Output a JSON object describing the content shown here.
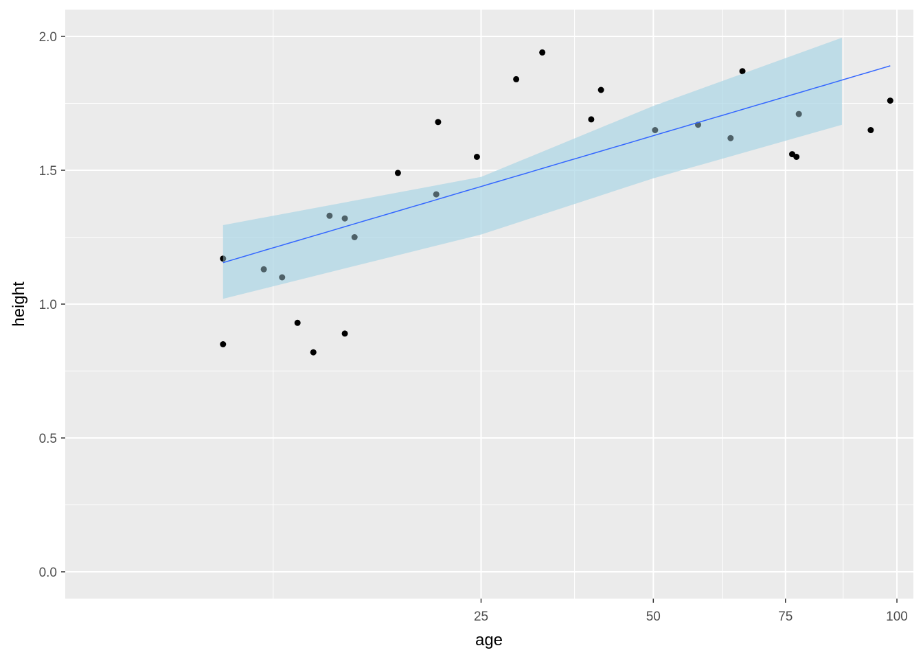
{
  "chart_data": {
    "type": "scatter",
    "title": "",
    "xlabel": "age",
    "ylabel": "height",
    "x_scale": "sqrt",
    "xlim": [
      0,
      104
    ],
    "ylim": [
      -0.1,
      2.1
    ],
    "x_major_ticks": [
      25,
      50,
      75,
      100
    ],
    "x_minor_ticks": [
      6.25,
      37.5,
      62.5,
      87.5
    ],
    "y_ticks": [
      0.0,
      0.5,
      1.0,
      1.5,
      2.0
    ],
    "y_tick_labels": [
      "0.0",
      "0.5",
      "1.0",
      "1.5",
      "2.0"
    ],
    "grid": true,
    "points": {
      "x": [
        3.6,
        3.6,
        5.7,
        6.8,
        7.8,
        8.9,
        10.1,
        11.3,
        12.1,
        11.3,
        16.0,
        20.1,
        19.9,
        24.5,
        29.4,
        32.9,
        40.0,
        41.5,
        50.3,
        57.9,
        64.0,
        66.3,
        76.4,
        77.3,
        77.8,
        93.8,
        98.4
      ],
      "y": [
        1.17,
        0.85,
        1.13,
        1.1,
        0.93,
        0.82,
        1.33,
        1.32,
        1.25,
        0.89,
        1.49,
        1.68,
        1.41,
        1.55,
        1.84,
        1.94,
        1.69,
        1.8,
        1.65,
        1.67,
        1.62,
        1.87,
        1.56,
        1.55,
        1.71,
        1.65,
        1.76
      ]
    },
    "fit": {
      "x": [
        3.6,
        98.4
      ],
      "y": [
        1.155,
        1.89
      ],
      "ci_x": [
        3.6,
        25,
        50,
        87.2
      ],
      "ci_lower": [
        1.02,
        1.26,
        1.47,
        1.67
      ],
      "ci_upper": [
        1.295,
        1.475,
        1.74,
        1.995
      ]
    },
    "colors": {
      "panel": "#EBEBEB",
      "grid": "#FFFFFF",
      "point": "#000000",
      "line": "#3366FF",
      "ribbon": "#ADD8E6"
    }
  }
}
